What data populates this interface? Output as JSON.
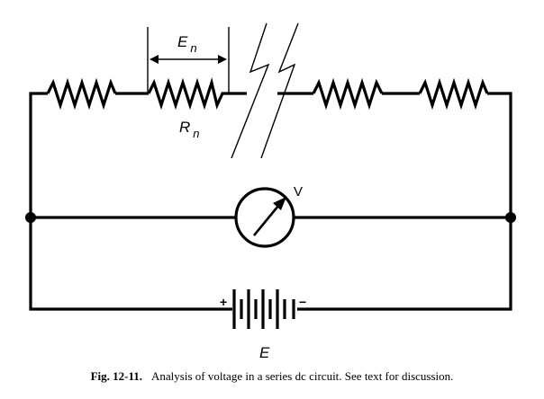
{
  "labels": {
    "voltage_drop": "E",
    "voltage_drop_sub": "n",
    "resistor": "R",
    "resistor_sub": "n",
    "meter": "V",
    "battery": "E",
    "battery_plus": "+",
    "battery_minus": "−"
  },
  "caption": {
    "figure": "Fig. 12-11.",
    "text": "Analysis of voltage in a series dc circuit. See text for discussion."
  }
}
